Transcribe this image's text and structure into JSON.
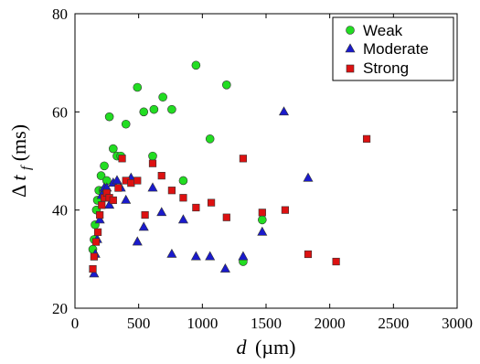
{
  "chart_data": {
    "type": "scatter",
    "title": "",
    "xlabel": {
      "italic": "d",
      "unit": "(µm)"
    },
    "ylabel": {
      "prefix": "Δ",
      "italic": "t",
      "sub": "f",
      "unit": " (ms)"
    },
    "xlim": [
      0,
      3000
    ],
    "ylim": [
      20,
      80
    ],
    "xticks": [
      0,
      500,
      1000,
      1500,
      2000,
      2500,
      3000
    ],
    "yticks": [
      20,
      40,
      60,
      80
    ],
    "grid": false,
    "legend_position": "top-right",
    "series": [
      {
        "name": "Weak",
        "marker": "circle",
        "color": "#22dd22",
        "points": [
          [
            140,
            32
          ],
          [
            150,
            34
          ],
          [
            158,
            37
          ],
          [
            168,
            40
          ],
          [
            176,
            42
          ],
          [
            188,
            44
          ],
          [
            205,
            47
          ],
          [
            220,
            44
          ],
          [
            230,
            49
          ],
          [
            250,
            46
          ],
          [
            270,
            59
          ],
          [
            300,
            52.5
          ],
          [
            330,
            51
          ],
          [
            360,
            51
          ],
          [
            400,
            57.5
          ],
          [
            440,
            46
          ],
          [
            490,
            65
          ],
          [
            540,
            60
          ],
          [
            610,
            51
          ],
          [
            620,
            60.5
          ],
          [
            690,
            63
          ],
          [
            760,
            60.5
          ],
          [
            850,
            46
          ],
          [
            950,
            69.5
          ],
          [
            1060,
            54.5
          ],
          [
            1190,
            65.5
          ],
          [
            1320,
            29.5
          ],
          [
            1470,
            38
          ]
        ]
      },
      {
        "name": "Moderate",
        "marker": "triangle",
        "color": "#1a1acc",
        "points": [
          [
            150,
            27
          ],
          [
            160,
            31
          ],
          [
            175,
            34
          ],
          [
            195,
            38
          ],
          [
            210,
            43
          ],
          [
            230,
            44.5
          ],
          [
            250,
            44.5
          ],
          [
            270,
            41
          ],
          [
            300,
            45.5
          ],
          [
            330,
            46
          ],
          [
            360,
            44.5
          ],
          [
            400,
            42
          ],
          [
            440,
            46.5
          ],
          [
            490,
            33.5
          ],
          [
            540,
            36.5
          ],
          [
            610,
            44.5
          ],
          [
            680,
            39.5
          ],
          [
            760,
            31
          ],
          [
            850,
            38
          ],
          [
            950,
            30.5
          ],
          [
            1060,
            30.5
          ],
          [
            1180,
            28
          ],
          [
            1320,
            30.5
          ],
          [
            1470,
            35.5
          ],
          [
            1640,
            60
          ],
          [
            1830,
            46.5
          ]
        ]
      },
      {
        "name": "Strong",
        "marker": "square",
        "color": "#dd1111",
        "points": [
          [
            140,
            28
          ],
          [
            150,
            30.5
          ],
          [
            165,
            33.5
          ],
          [
            180,
            35.5
          ],
          [
            195,
            39
          ],
          [
            210,
            41
          ],
          [
            230,
            42.5
          ],
          [
            250,
            43.5
          ],
          [
            270,
            42.5
          ],
          [
            300,
            42
          ],
          [
            340,
            44.5
          ],
          [
            370,
            50.5
          ],
          [
            400,
            46
          ],
          [
            440,
            45.5
          ],
          [
            490,
            46
          ],
          [
            550,
            39
          ],
          [
            610,
            49.5
          ],
          [
            680,
            47
          ],
          [
            760,
            44
          ],
          [
            850,
            42.5
          ],
          [
            950,
            40.5
          ],
          [
            1070,
            41.5
          ],
          [
            1190,
            38.5
          ],
          [
            1320,
            50.5
          ],
          [
            1470,
            39.5
          ],
          [
            1650,
            40
          ],
          [
            1830,
            31
          ],
          [
            2050,
            29.5
          ],
          [
            2290,
            54.5
          ]
        ]
      }
    ]
  }
}
